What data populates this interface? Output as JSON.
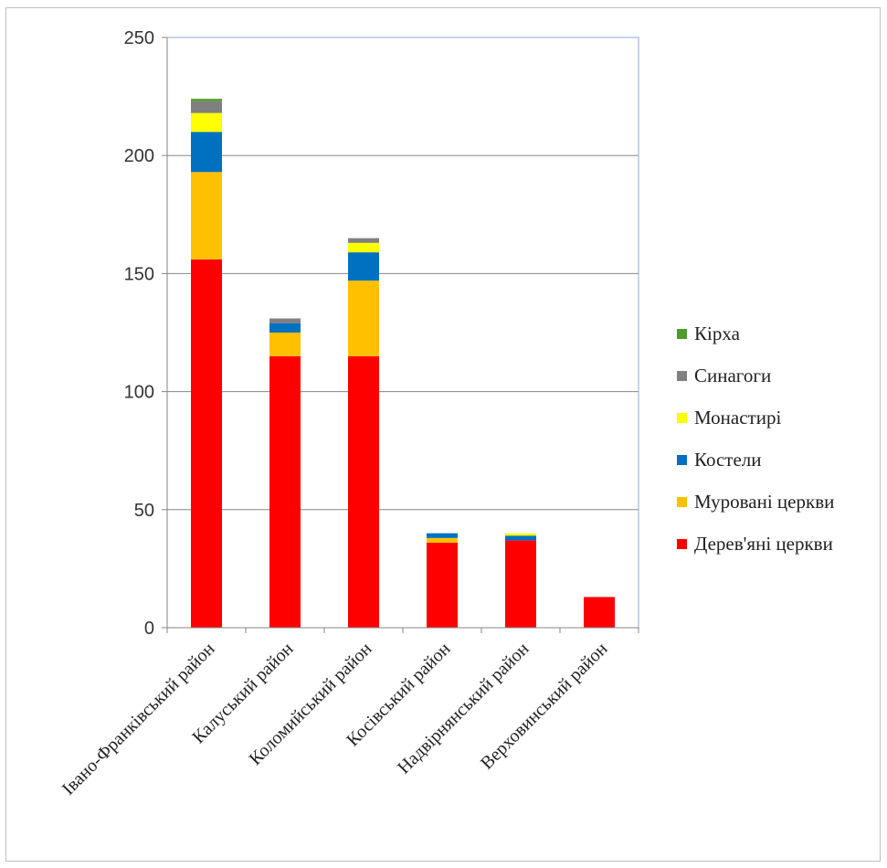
{
  "chart_data": {
    "type": "bar",
    "stacked": true,
    "title": "",
    "xlabel": "",
    "ylabel": "",
    "ylim": [
      0,
      250
    ],
    "yticks": [
      0,
      50,
      100,
      150,
      200,
      250
    ],
    "grid": "horizontal",
    "legend_position": "right",
    "categories": [
      "Івано-Франківський район",
      "Калуський район",
      "Коломийський район",
      "Косівський район",
      "Надвірнянський район",
      "Верховинський район"
    ],
    "series": [
      {
        "name": "Дерев'яні церкви",
        "color": "#ff0000",
        "values": [
          156,
          115,
          115,
          36,
          37,
          13
        ]
      },
      {
        "name": "Муровані церкви",
        "color": "#ffc000",
        "values": [
          37,
          10,
          32,
          2,
          0,
          0
        ]
      },
      {
        "name": "Костели",
        "color": "#0070c0",
        "values": [
          17,
          4,
          12,
          2,
          2,
          0
        ]
      },
      {
        "name": "Монастирі",
        "color": "#ffff00",
        "values": [
          8,
          0,
          4,
          0,
          1,
          0
        ]
      },
      {
        "name": "Синагоги",
        "color": "#808080",
        "values": [
          5,
          2,
          2,
          0,
          0,
          0
        ]
      },
      {
        "name": "Кірха",
        "color": "#4e9a2a",
        "values": [
          1,
          0,
          0,
          0,
          0,
          0
        ]
      }
    ]
  }
}
